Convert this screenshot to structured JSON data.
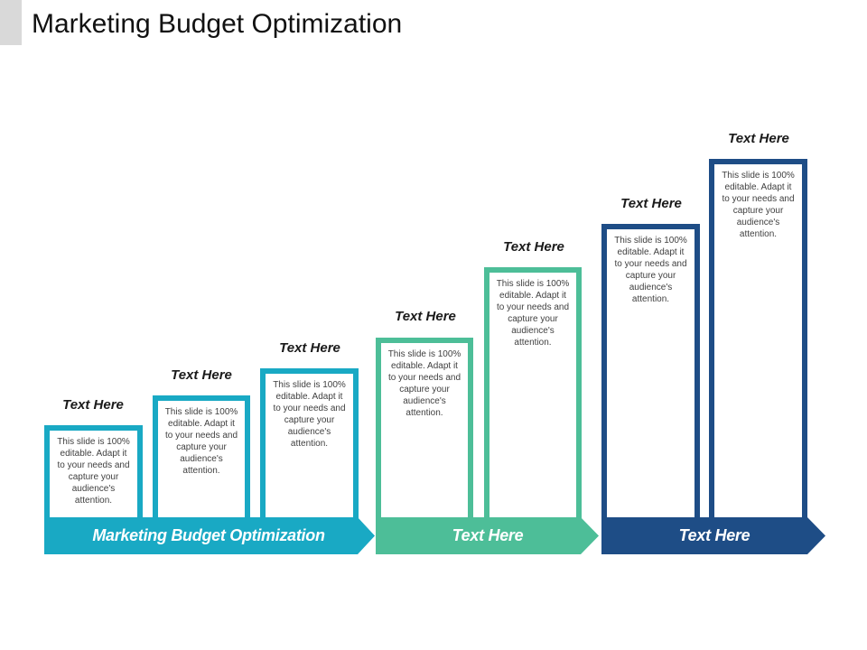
{
  "title": "Marketing Budget Optimization",
  "colors": {
    "teal_blue": "#19A9C4",
    "green": "#4DBE98",
    "navy": "#1E4D86",
    "title_accent": "#D9D9D9"
  },
  "bars": [
    {
      "heading": "Text Here",
      "body": "This slide is 100% editable. Adapt it to your needs and capture your audience's attention."
    },
    {
      "heading": "Text Here",
      "body": "This slide is 100% editable. Adapt it to your needs and capture your audience's attention."
    },
    {
      "heading": "Text Here",
      "body": "This slide is 100% editable. Adapt it to your needs and capture your audience's attention."
    },
    {
      "heading": "Text Here",
      "body": "This slide is 100% editable. Adapt it to your needs and capture your audience's attention."
    },
    {
      "heading": "Text Here",
      "body": "This slide is 100% editable. Adapt it to your needs and capture your audience's attention."
    },
    {
      "heading": "Text Here",
      "body": "This slide is 100% editable. Adapt it to your needs and capture your audience's attention."
    },
    {
      "heading": "Text Here",
      "body": "This slide is 100% editable. Adapt it to your needs and capture your audience's attention."
    }
  ],
  "arrows": [
    {
      "label": "Marketing Budget Optimization"
    },
    {
      "label": "Text Here"
    },
    {
      "label": "Text Here"
    }
  ]
}
